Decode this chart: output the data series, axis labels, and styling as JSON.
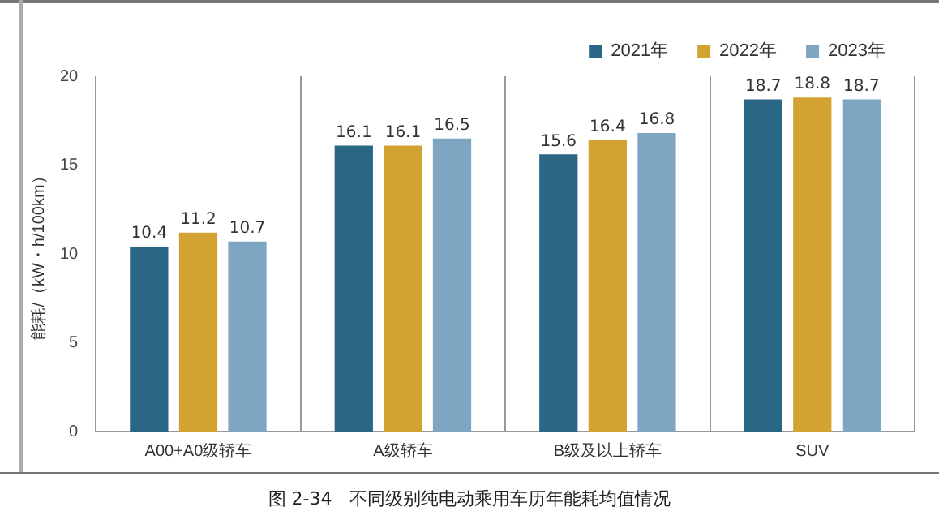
{
  "chart_data": {
    "type": "bar",
    "title": "图 2-34　不同级别纯电动乘用车历年能耗均值情况",
    "ylabel": "能耗/（kW・h/100km）",
    "categories": [
      "A00+A0级轿车",
      "A级轿车",
      "B级及以上轿车",
      "SUV"
    ],
    "series": [
      {
        "name": "2021年",
        "color": "#2a6685",
        "values": [
          10.4,
          16.1,
          15.6,
          18.7
        ]
      },
      {
        "name": "2022年",
        "color": "#d2a233",
        "values": [
          11.2,
          16.1,
          16.4,
          18.8
        ]
      },
      {
        "name": "2023年",
        "color": "#7ea6c2",
        "values": [
          10.7,
          16.5,
          16.8,
          18.7
        ]
      }
    ],
    "ylim": [
      0,
      20
    ],
    "yticks": [
      0,
      5,
      10,
      15,
      20
    ],
    "grid": "x",
    "legend": "top right",
    "data_labels": true
  }
}
